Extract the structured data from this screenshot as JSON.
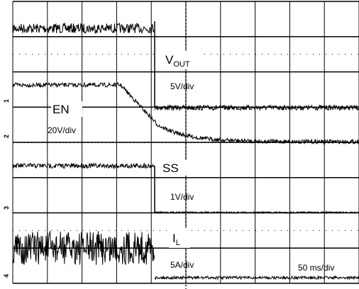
{
  "channels": [
    {
      "marker": "1",
      "label": "V",
      "subscript": "OUT",
      "scale": "5V/div"
    },
    {
      "marker": "2",
      "label": "EN",
      "scale": "20V/div"
    },
    {
      "marker": "3",
      "label": "SS",
      "scale": "1V/div"
    },
    {
      "marker": "4",
      "label": "I",
      "subscript": "L",
      "scale": "5A/div"
    }
  ],
  "timebase": "50 ms/div"
}
